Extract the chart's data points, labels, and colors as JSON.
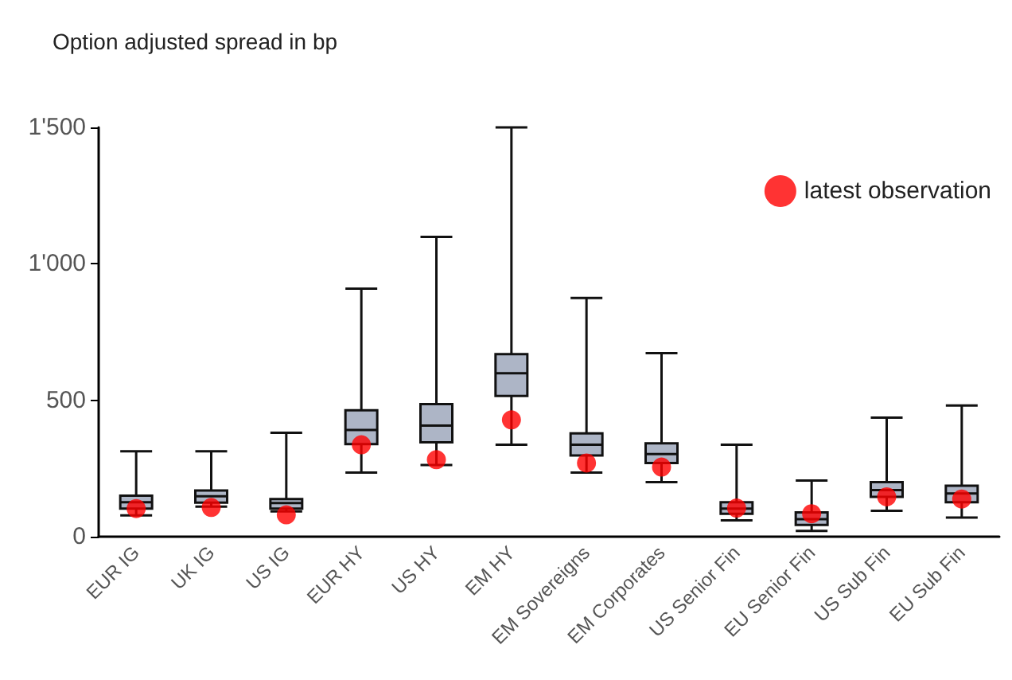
{
  "chart_data": {
    "type": "box",
    "title": "Option adjusted spread in bp",
    "categories": [
      "EUR IG",
      "UK IG",
      "US IG",
      "EUR HY",
      "US HY",
      "EM HY",
      "EM Sovereigns",
      "EM Corporates",
      "US Senior Fin",
      "EU Senior Fin",
      "US Sub Fin",
      "EU Sub Fin"
    ],
    "boxes": [
      {
        "low": 78,
        "q1": 103,
        "median": 126,
        "q3": 150,
        "high": 313
      },
      {
        "low": 110,
        "q1": 125,
        "median": 148,
        "q3": 169,
        "high": 313
      },
      {
        "low": 93,
        "q1": 103,
        "median": 123,
        "q3": 138,
        "high": 381
      },
      {
        "low": 235,
        "q1": 339,
        "median": 391,
        "q3": 463,
        "high": 909
      },
      {
        "low": 263,
        "q1": 346,
        "median": 407,
        "q3": 486,
        "high": 1099
      },
      {
        "low": 337,
        "q1": 516,
        "median": 599,
        "q3": 669,
        "high": 1500
      },
      {
        "low": 235,
        "q1": 298,
        "median": 337,
        "q3": 379,
        "high": 875
      },
      {
        "low": 200,
        "q1": 270,
        "median": 303,
        "q3": 342,
        "high": 673
      },
      {
        "low": 60,
        "q1": 84,
        "median": 103,
        "q3": 126,
        "high": 337
      },
      {
        "low": 21,
        "q1": 43,
        "median": 64,
        "q3": 89,
        "high": 206
      },
      {
        "low": 95,
        "q1": 146,
        "median": 171,
        "q3": 200,
        "high": 436
      },
      {
        "low": 70,
        "q1": 126,
        "median": 158,
        "q3": 187,
        "high": 481
      }
    ],
    "color": "#adb5c6",
    "series": [
      {
        "type": "scatter",
        "name": "latest observation",
        "color": "#ff0000",
        "marker": "circle",
        "x": [
          "EUR IG",
          "UK IG",
          "US IG",
          "EUR HY",
          "US HY",
          "EM HY",
          "EM Sovereigns",
          "EM Corporates",
          "US Senior Fin",
          "EU Senior Fin",
          "US Sub Fin",
          "EU Sub Fin"
        ],
        "values": [
          103,
          107,
          80,
          337,
          282,
          428,
          270,
          255,
          105,
          84,
          146,
          138
        ]
      }
    ],
    "ylim": [
      0,
      1500
    ],
    "yticks": [
      0,
      500,
      {
        "value": 1000,
        "label": "1'000"
      },
      {
        "value": 1500,
        "label": "1'500"
      }
    ],
    "grid": false,
    "legend": "top right"
  }
}
